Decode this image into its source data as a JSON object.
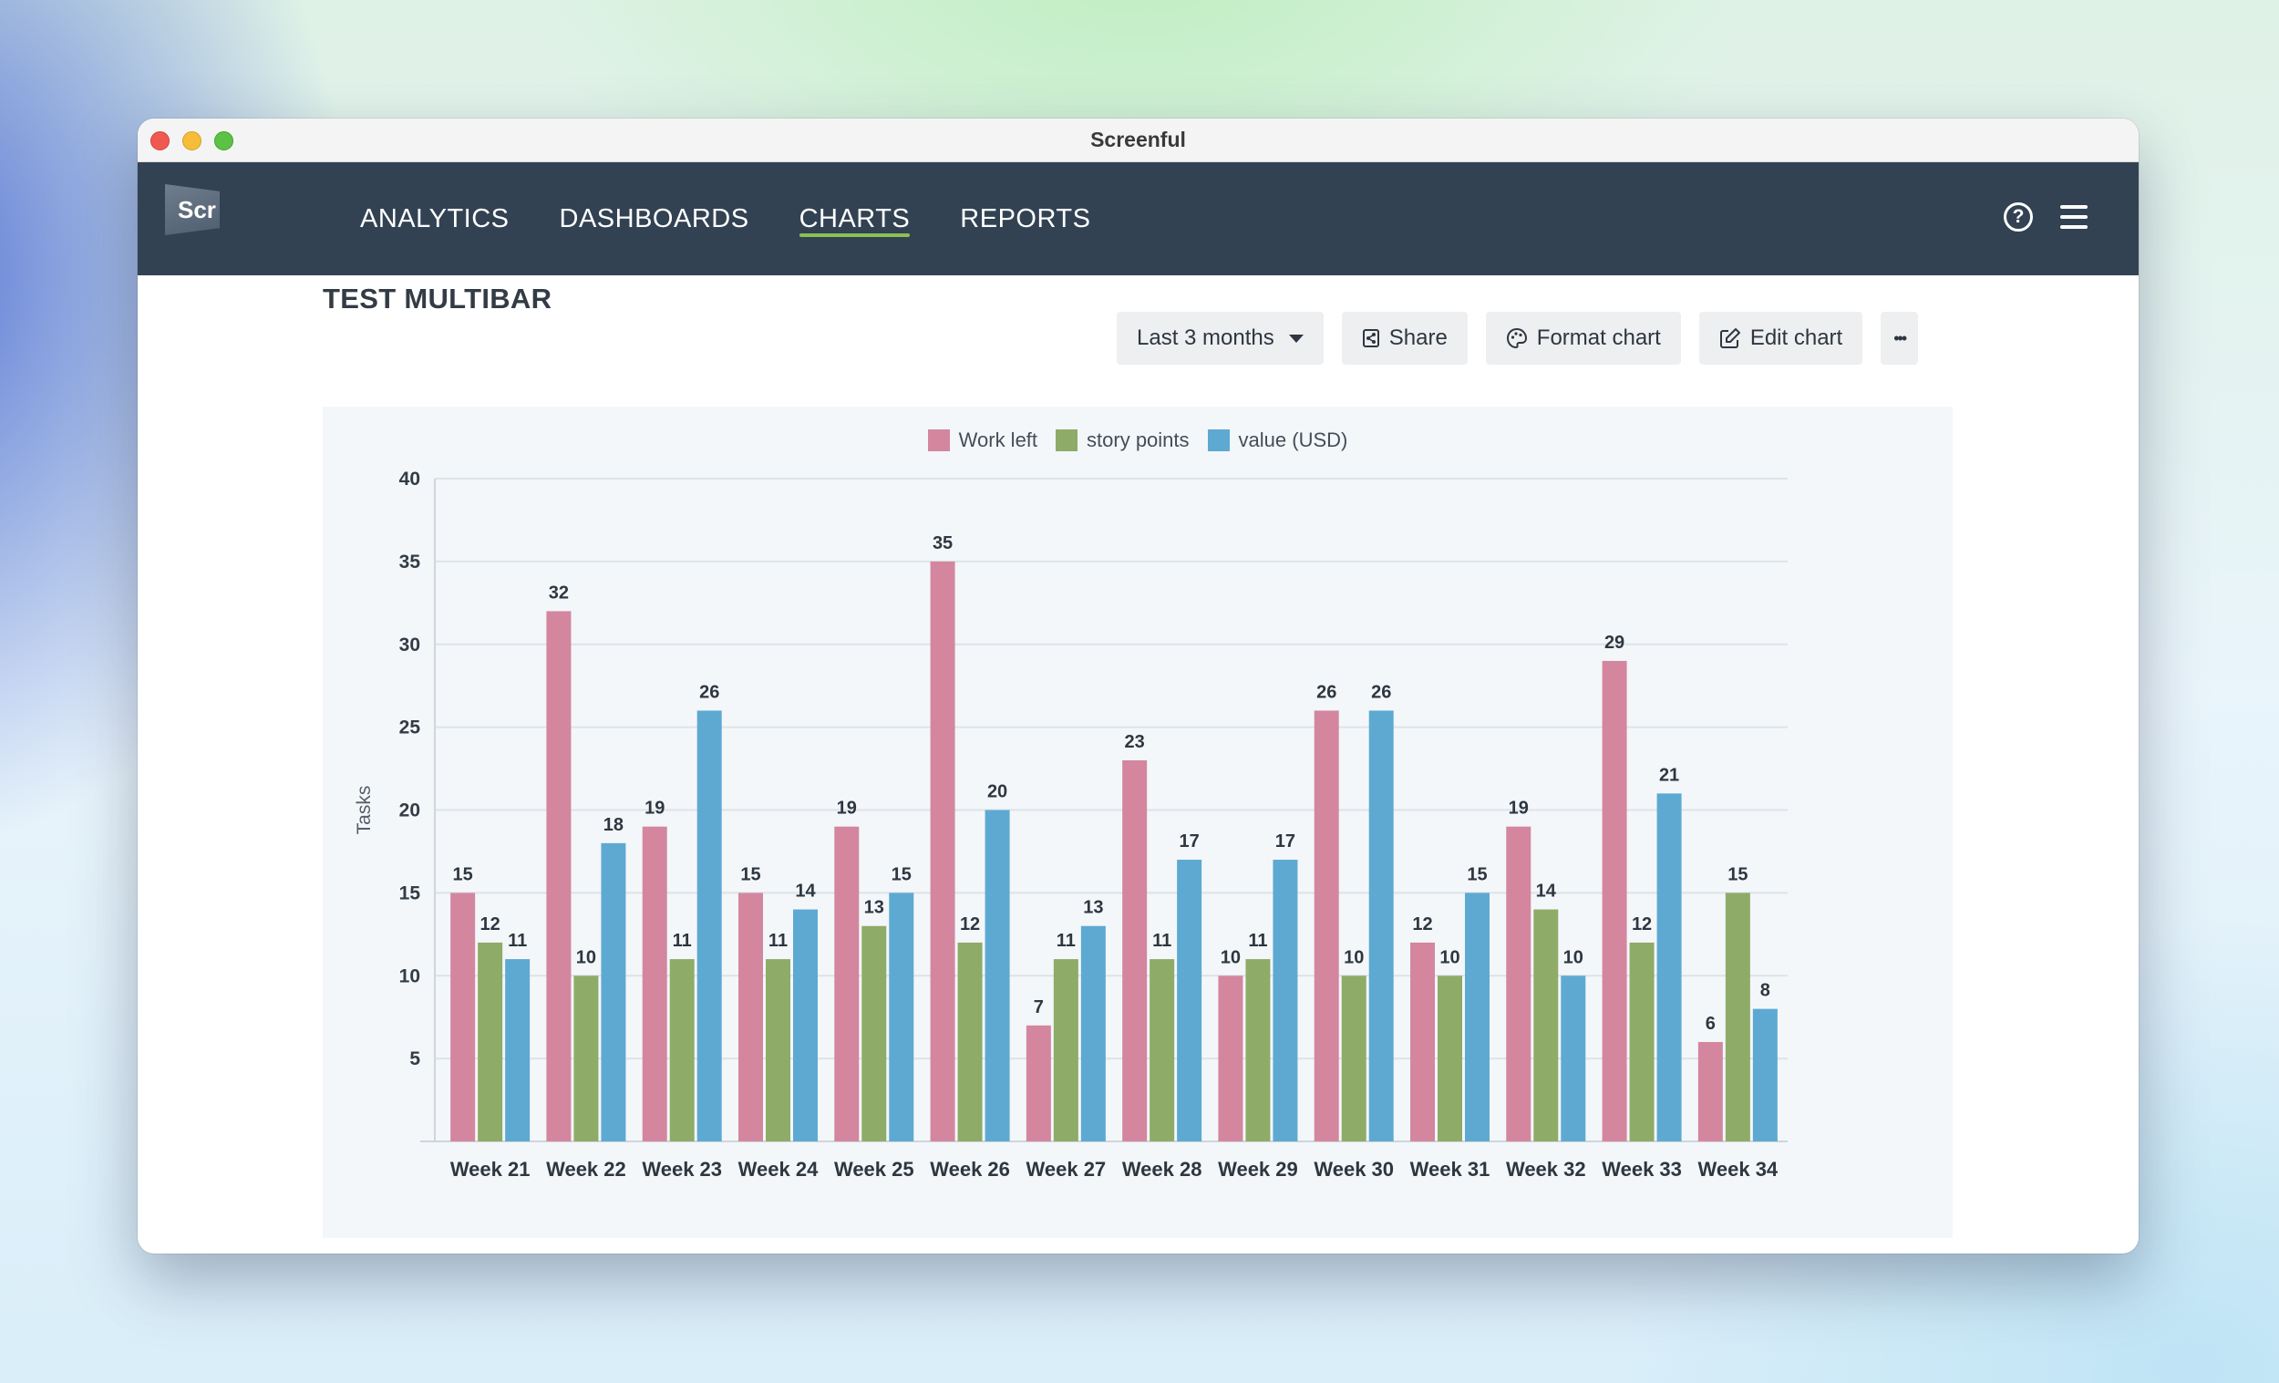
{
  "window": {
    "title": "Screenful"
  },
  "logo": {
    "text": "Scr"
  },
  "nav": {
    "items": [
      {
        "label": "ANALYTICS",
        "active": false
      },
      {
        "label": "DASHBOARDS",
        "active": false
      },
      {
        "label": "CHARTS",
        "active": true
      },
      {
        "label": "REPORTS",
        "active": false
      }
    ],
    "help_icon": "help-circle-icon",
    "menu_icon": "hamburger-menu-icon"
  },
  "page": {
    "title": "TEST MULTIBAR"
  },
  "toolbar": {
    "range_label": "Last 3 months",
    "share_label": "Share",
    "format_label": "Format chart",
    "edit_label": "Edit chart",
    "more_label": "•••"
  },
  "colors": {
    "work_left": "#d4869f",
    "story_points": "#8fab68",
    "value_usd": "#5ea9d2",
    "nav_bg": "#324253",
    "active_underline": "#8cc152"
  },
  "chart_data": {
    "type": "bar",
    "title": "",
    "xlabel": "",
    "ylabel": "Tasks",
    "ylim": [
      0,
      40
    ],
    "yticks": [
      5,
      10,
      15,
      20,
      25,
      30,
      35,
      40
    ],
    "grid": true,
    "legend_position": "top-center",
    "categories": [
      "Week 21",
      "Week 22",
      "Week 23",
      "Week 24",
      "Week 25",
      "Week 26",
      "Week 27",
      "Week 28",
      "Week 29",
      "Week 30",
      "Week 31",
      "Week 32",
      "Week 33",
      "Week 34"
    ],
    "series": [
      {
        "name": "Work left",
        "color": "#d4869f",
        "values": [
          15,
          32,
          19,
          15,
          19,
          35,
          7,
          23,
          10,
          26,
          12,
          19,
          29,
          6
        ]
      },
      {
        "name": "story points",
        "color": "#8fab68",
        "values": [
          12,
          10,
          11,
          11,
          13,
          12,
          11,
          11,
          11,
          10,
          10,
          14,
          12,
          15
        ]
      },
      {
        "name": "value (USD)",
        "color": "#5ea9d2",
        "values": [
          11,
          18,
          26,
          14,
          15,
          20,
          13,
          17,
          17,
          26,
          15,
          10,
          21,
          8
        ]
      }
    ]
  }
}
